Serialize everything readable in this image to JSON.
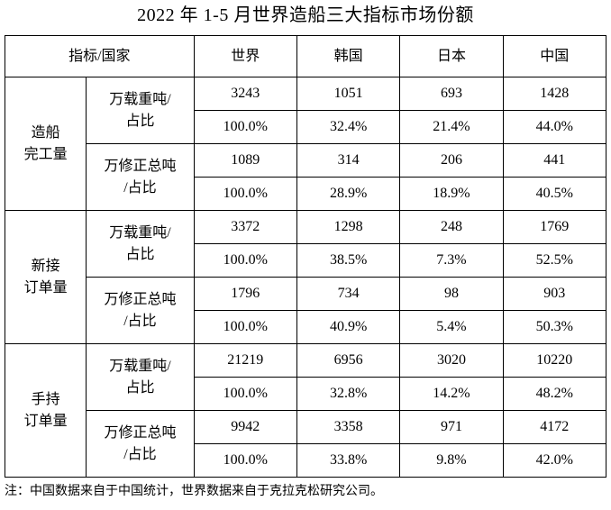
{
  "title": "2022 年 1-5 月世界造船三大指标市场份额",
  "table": {
    "corner_header": "指标/国家",
    "columns": [
      "世界",
      "韩国",
      "日本",
      "中国"
    ],
    "groups": [
      {
        "name": "造船\n完工量",
        "rows": [
          {
            "indicator": "万载重吨/\n占比",
            "values": [
              "3243",
              "1051",
              "693",
              "1428"
            ],
            "shares": [
              "100.0%",
              "32.4%",
              "21.4%",
              "44.0%"
            ]
          },
          {
            "indicator": "万修正总吨\n/占比",
            "values": [
              "1089",
              "314",
              "206",
              "441"
            ],
            "shares": [
              "100.0%",
              "28.9%",
              "18.9%",
              "40.5%"
            ]
          }
        ]
      },
      {
        "name": "新接\n订单量",
        "rows": [
          {
            "indicator": "万载重吨/\n占比",
            "values": [
              "3372",
              "1298",
              "248",
              "1769"
            ],
            "shares": [
              "100.0%",
              "38.5%",
              "7.3%",
              "52.5%"
            ]
          },
          {
            "indicator": "万修正总吨\n/占比",
            "values": [
              "1796",
              "734",
              "98",
              "903"
            ],
            "shares": [
              "100.0%",
              "40.9%",
              "5.4%",
              "50.3%"
            ]
          }
        ]
      },
      {
        "name": "手持\n订单量",
        "rows": [
          {
            "indicator": "万载重吨/\n占比",
            "values": [
              "21219",
              "6956",
              "3020",
              "10220"
            ],
            "shares": [
              "100.0%",
              "32.8%",
              "14.2%",
              "48.2%"
            ]
          },
          {
            "indicator": "万修正总吨\n/占比",
            "values": [
              "9942",
              "3358",
              "971",
              "4172"
            ],
            "shares": [
              "100.0%",
              "33.8%",
              "9.8%",
              "42.0%"
            ]
          }
        ]
      }
    ]
  },
  "note": "注：中国数据来自于中国统计，世界数据来自于克拉克松研究公司。"
}
